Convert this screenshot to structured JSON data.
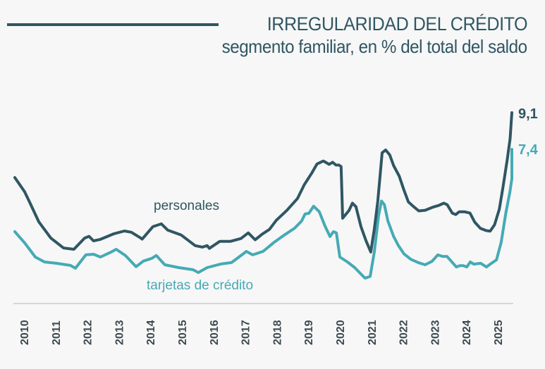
{
  "header": {
    "title": "IRREGULARIDAD DEL CRÉDITO",
    "subtitle": "segmento familiar, en % del total del saldo"
  },
  "colors": {
    "personales": "#2f5663",
    "tarjetas": "#45aab5",
    "axis": "#d6d6d6",
    "tick": "#3d4a50",
    "background": "#f7f7f7"
  },
  "chart_data": {
    "type": "line",
    "title": "IRREGULARIDAD DEL CRÉDITO",
    "subtitle": "segmento familiar, en % del total del saldo",
    "xlabel": "",
    "ylabel": "",
    "xlim": [
      2009.7,
      2025.5
    ],
    "ylim": [
      0,
      9.5
    ],
    "grid": false,
    "legend": "inline labels",
    "x_ticks": [
      "2010",
      "2011",
      "2012",
      "2013",
      "2014",
      "2015",
      "2016",
      "2017",
      "2018",
      "2019",
      "2020",
      "2021",
      "2022",
      "2023",
      "2024",
      "2025"
    ],
    "series": [
      {
        "name": "personales",
        "label": "personales",
        "end_label": "9,1",
        "points": [
          [
            2009.71,
            6.09
          ],
          [
            2010.02,
            5.43
          ],
          [
            2010.18,
            4.94
          ],
          [
            2010.47,
            4.03
          ],
          [
            2010.85,
            3.28
          ],
          [
            2011.25,
            2.82
          ],
          [
            2011.58,
            2.76
          ],
          [
            2011.92,
            3.28
          ],
          [
            2012.06,
            3.36
          ],
          [
            2012.2,
            3.15
          ],
          [
            2012.42,
            3.22
          ],
          [
            2012.85,
            3.48
          ],
          [
            2013.18,
            3.61
          ],
          [
            2013.4,
            3.55
          ],
          [
            2013.69,
            3.29
          ],
          [
            2013.74,
            3.23
          ],
          [
            2014.08,
            3.81
          ],
          [
            2014.35,
            3.94
          ],
          [
            2014.53,
            3.68
          ],
          [
            2014.55,
            3.65
          ],
          [
            2014.98,
            3.42
          ],
          [
            2015.42,
            2.93
          ],
          [
            2015.65,
            2.86
          ],
          [
            2015.8,
            2.93
          ],
          [
            2015.87,
            2.8
          ],
          [
            2016.2,
            3.13
          ],
          [
            2016.54,
            3.13
          ],
          [
            2016.87,
            3.26
          ],
          [
            2017.1,
            3.52
          ],
          [
            2017.32,
            3.2
          ],
          [
            2017.54,
            3.46
          ],
          [
            2017.77,
            3.68
          ],
          [
            2017.99,
            4.11
          ],
          [
            2018.32,
            4.56
          ],
          [
            2018.66,
            5.12
          ],
          [
            2018.88,
            5.77
          ],
          [
            2019.1,
            6.27
          ],
          [
            2019.28,
            6.72
          ],
          [
            2019.48,
            6.86
          ],
          [
            2019.66,
            6.7
          ],
          [
            2019.77,
            6.8
          ],
          [
            2019.88,
            6.67
          ],
          [
            2019.97,
            6.67
          ],
          [
            2020.04,
            6.6
          ],
          [
            2020.09,
            4.2
          ],
          [
            2020.29,
            4.56
          ],
          [
            2020.4,
            4.9
          ],
          [
            2020.51,
            4.74
          ],
          [
            2020.67,
            3.81
          ],
          [
            2020.83,
            3.15
          ],
          [
            2020.98,
            2.63
          ],
          [
            2021.09,
            3.67
          ],
          [
            2021.2,
            4.98
          ],
          [
            2021.34,
            7.24
          ],
          [
            2021.45,
            7.37
          ],
          [
            2021.58,
            7.14
          ],
          [
            2021.7,
            6.65
          ],
          [
            2021.88,
            6.16
          ],
          [
            2022.03,
            5.51
          ],
          [
            2022.17,
            4.96
          ],
          [
            2022.32,
            4.76
          ],
          [
            2022.5,
            4.54
          ],
          [
            2022.7,
            4.57
          ],
          [
            2022.92,
            4.7
          ],
          [
            2023.14,
            4.8
          ],
          [
            2023.29,
            4.9
          ],
          [
            2023.4,
            4.83
          ],
          [
            2023.56,
            4.44
          ],
          [
            2023.67,
            4.37
          ],
          [
            2023.78,
            4.5
          ],
          [
            2023.94,
            4.5
          ],
          [
            2024.12,
            4.44
          ],
          [
            2024.27,
            4.02
          ],
          [
            2024.45,
            3.73
          ],
          [
            2024.63,
            3.63
          ],
          [
            2024.76,
            3.6
          ],
          [
            2024.9,
            3.9
          ],
          [
            2025.05,
            4.62
          ],
          [
            2025.16,
            5.6
          ],
          [
            2025.3,
            6.91
          ],
          [
            2025.39,
            7.89
          ],
          [
            2025.45,
            9.1
          ]
        ]
      },
      {
        "name": "tarjetas de crédito",
        "label": "tarjetas de crédito",
        "end_label": "7,4",
        "points": [
          [
            2009.71,
            3.58
          ],
          [
            2010.02,
            3.06
          ],
          [
            2010.36,
            2.4
          ],
          [
            2010.65,
            2.17
          ],
          [
            2011.03,
            2.11
          ],
          [
            2011.47,
            2.01
          ],
          [
            2011.63,
            1.88
          ],
          [
            2011.96,
            2.5
          ],
          [
            2012.2,
            2.53
          ],
          [
            2012.42,
            2.4
          ],
          [
            2012.76,
            2.63
          ],
          [
            2012.92,
            2.76
          ],
          [
            2013.21,
            2.47
          ],
          [
            2013.55,
            1.95
          ],
          [
            2013.78,
            2.21
          ],
          [
            2014.05,
            2.34
          ],
          [
            2014.19,
            2.47
          ],
          [
            2014.46,
            2.04
          ],
          [
            2014.9,
            1.91
          ],
          [
            2015.35,
            1.81
          ],
          [
            2015.52,
            1.68
          ],
          [
            2015.8,
            1.91
          ],
          [
            2016.24,
            2.08
          ],
          [
            2016.57,
            2.14
          ],
          [
            2016.9,
            2.5
          ],
          [
            2017.04,
            2.66
          ],
          [
            2017.24,
            2.5
          ],
          [
            2017.57,
            2.66
          ],
          [
            2017.9,
            3.06
          ],
          [
            2018.24,
            3.42
          ],
          [
            2018.57,
            3.74
          ],
          [
            2018.79,
            4.07
          ],
          [
            2018.9,
            4.4
          ],
          [
            2019.02,
            4.43
          ],
          [
            2019.17,
            4.76
          ],
          [
            2019.35,
            4.5
          ],
          [
            2019.53,
            3.84
          ],
          [
            2019.69,
            3.35
          ],
          [
            2019.8,
            3.58
          ],
          [
            2019.89,
            3.52
          ],
          [
            2020.0,
            2.4
          ],
          [
            2020.24,
            2.17
          ],
          [
            2020.47,
            1.91
          ],
          [
            2020.69,
            1.58
          ],
          [
            2020.8,
            1.42
          ],
          [
            2020.96,
            1.5
          ],
          [
            2021.09,
            2.61
          ],
          [
            2021.23,
            4.35
          ],
          [
            2021.32,
            5.0
          ],
          [
            2021.41,
            4.83
          ],
          [
            2021.52,
            4.08
          ],
          [
            2021.7,
            3.36
          ],
          [
            2021.85,
            2.94
          ],
          [
            2022.03,
            2.55
          ],
          [
            2022.25,
            2.29
          ],
          [
            2022.5,
            2.13
          ],
          [
            2022.7,
            2.04
          ],
          [
            2022.92,
            2.2
          ],
          [
            2023.1,
            2.5
          ],
          [
            2023.25,
            2.43
          ],
          [
            2023.39,
            2.43
          ],
          [
            2023.53,
            2.2
          ],
          [
            2023.69,
            1.94
          ],
          [
            2023.8,
            2.0
          ],
          [
            2023.91,
            2.0
          ],
          [
            2024.02,
            1.94
          ],
          [
            2024.13,
            2.17
          ],
          [
            2024.24,
            2.07
          ],
          [
            2024.46,
            2.11
          ],
          [
            2024.64,
            1.94
          ],
          [
            2024.8,
            2.11
          ],
          [
            2024.96,
            2.27
          ],
          [
            2025.11,
            3.09
          ],
          [
            2025.25,
            4.4
          ],
          [
            2025.38,
            5.38
          ],
          [
            2025.47,
            6.03
          ],
          [
            2025.6,
            7.4
          ]
        ]
      }
    ]
  }
}
